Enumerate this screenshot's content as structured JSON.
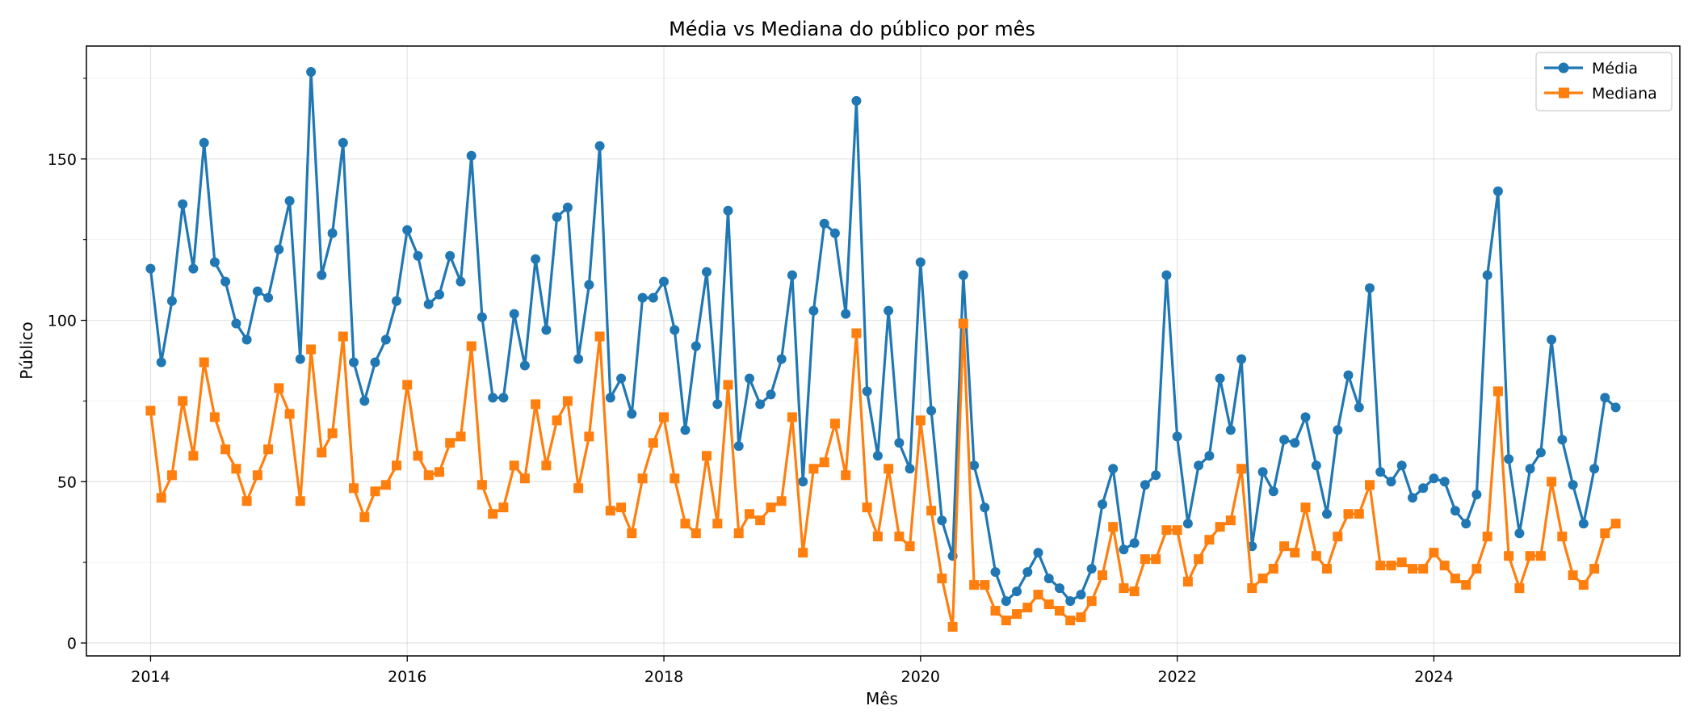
{
  "chart_data": {
    "type": "line",
    "title": "Média vs Mediana do público por mês",
    "xlabel": "Mês",
    "ylabel": "Público",
    "x_start": "2014-01",
    "xlim": [
      "2013-07",
      "2025-12"
    ],
    "ylim": [
      -4,
      185
    ],
    "x_ticks": [
      "2014",
      "2016",
      "2018",
      "2020",
      "2022",
      "2024"
    ],
    "y_ticks": [
      0,
      50,
      100,
      150
    ],
    "grid": true,
    "legend_position": "top-right",
    "series": [
      {
        "name": "Média",
        "color": "#1f77b4",
        "marker": "circle",
        "values": [
          116,
          87,
          106,
          136,
          116,
          155,
          118,
          112,
          99,
          94,
          109,
          107,
          122,
          137,
          88,
          177,
          114,
          127,
          155,
          87,
          75,
          87,
          94,
          106,
          128,
          120,
          105,
          108,
          120,
          112,
          151,
          101,
          76,
          76,
          102,
          86,
          119,
          97,
          132,
          135,
          88,
          111,
          154,
          76,
          82,
          71,
          107,
          107,
          112,
          97,
          66,
          92,
          115,
          74,
          134,
          61,
          82,
          74,
          77,
          88,
          114,
          50,
          103,
          130,
          127,
          102,
          168,
          78,
          58,
          103,
          62,
          54,
          118,
          72,
          38,
          27,
          114,
          55,
          42,
          22,
          13,
          16,
          22,
          28,
          20,
          17,
          13,
          15,
          23,
          43,
          54,
          29,
          31,
          49,
          52,
          114,
          64,
          37,
          55,
          58,
          82,
          66,
          88,
          30,
          53,
          47,
          63,
          62,
          70,
          55,
          40,
          66,
          83,
          73,
          110,
          53,
          50,
          55,
          45,
          48,
          51,
          50,
          41,
          37,
          46,
          114,
          140,
          57,
          34,
          54,
          59,
          94,
          63,
          49,
          37,
          54,
          76,
          73
        ]
      },
      {
        "name": "Mediana",
        "color": "#ff7f0e",
        "marker": "square",
        "values": [
          72,
          45,
          52,
          75,
          58,
          87,
          70,
          60,
          54,
          44,
          52,
          60,
          79,
          71,
          44,
          91,
          59,
          65,
          95,
          48,
          39,
          47,
          49,
          55,
          80,
          58,
          52,
          53,
          62,
          64,
          92,
          49,
          40,
          42,
          55,
          51,
          74,
          55,
          69,
          75,
          48,
          64,
          95,
          41,
          42,
          34,
          51,
          62,
          70,
          51,
          37,
          34,
          58,
          37,
          80,
          34,
          40,
          38,
          42,
          44,
          70,
          28,
          54,
          56,
          68,
          52,
          96,
          42,
          33,
          54,
          33,
          30,
          69,
          41,
          20,
          5,
          99,
          18,
          18,
          10,
          7,
          9,
          11,
          15,
          12,
          10,
          7,
          8,
          13,
          21,
          36,
          17,
          16,
          26,
          26,
          35,
          35,
          19,
          26,
          32,
          36,
          38,
          54,
          17,
          20,
          23,
          30,
          28,
          42,
          27,
          23,
          33,
          40,
          40,
          49,
          24,
          24,
          25,
          23,
          23,
          28,
          24,
          20,
          18,
          23,
          33,
          78,
          27,
          17,
          27,
          27,
          50,
          33,
          21,
          18,
          23,
          34,
          37
        ]
      }
    ]
  }
}
